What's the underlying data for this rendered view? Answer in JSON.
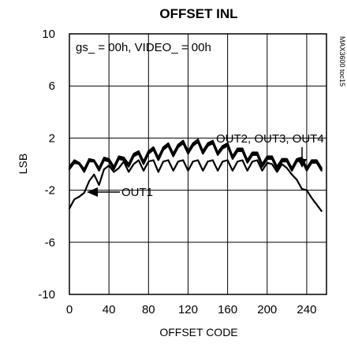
{
  "chart_data": {
    "type": "line",
    "title": "OFFSET INL",
    "xlabel": "OFFSET CODE",
    "ylabel": "LSB",
    "xlim": [
      0,
      260
    ],
    "ylim": [
      -10,
      10
    ],
    "xticks": [
      "0",
      "40",
      "80",
      "120",
      "160",
      "200",
      "240"
    ],
    "yticks": [
      "10",
      "6",
      "2",
      "-2",
      "-6",
      "-10"
    ],
    "grid": true,
    "condition_label": "gs_ = 00h, VIDEO_ = 00h",
    "part_code": "MAX3600 toc15",
    "annotations": [
      {
        "text": "OUT2, OUT3, OUT4",
        "target": "upper curves"
      },
      {
        "text": "OUT1",
        "target": "lower curve"
      }
    ],
    "series": [
      {
        "name": "OUT1",
        "x": [
          0,
          5,
          10,
          15,
          20,
          25,
          30,
          35,
          40,
          45,
          50,
          55,
          60,
          65,
          70,
          75,
          80,
          85,
          90,
          95,
          100,
          105,
          110,
          115,
          120,
          125,
          130,
          135,
          140,
          145,
          150,
          155,
          160,
          165,
          170,
          175,
          180,
          185,
          190,
          195,
          200,
          205,
          210,
          215,
          220,
          225,
          230,
          235,
          240,
          245,
          250,
          255
        ],
        "values": [
          -3.4,
          -2.7,
          -2.5,
          -2.2,
          -1.3,
          -0.8,
          -1.6,
          -0.4,
          -0.1,
          -0.6,
          -0.3,
          0.2,
          -0.6,
          0.0,
          0.3,
          -0.5,
          0.2,
          0.3,
          -0.6,
          0.2,
          0.3,
          -0.5,
          0.2,
          0.3,
          -0.5,
          0.2,
          0.3,
          -0.5,
          0.2,
          0.3,
          -0.5,
          0.2,
          0.3,
          -0.5,
          0.2,
          0.3,
          -0.5,
          0.2,
          0.3,
          -0.5,
          0.1,
          0.0,
          -0.6,
          0.0,
          -0.3,
          -0.8,
          -1.2,
          -1.9,
          -2.0,
          -2.6,
          -3.1,
          -3.6
        ]
      },
      {
        "name": "OUT2",
        "x": [
          0,
          5,
          10,
          15,
          20,
          25,
          30,
          35,
          40,
          45,
          50,
          55,
          60,
          65,
          70,
          75,
          80,
          85,
          90,
          95,
          100,
          105,
          110,
          115,
          120,
          125,
          130,
          135,
          140,
          145,
          150,
          155,
          160,
          165,
          170,
          175,
          180,
          185,
          190,
          195,
          200,
          205,
          210,
          215,
          220,
          225,
          230,
          235,
          240,
          245,
          250,
          255
        ],
        "values": [
          -0.2,
          0.3,
          0.1,
          -0.4,
          0.4,
          0.3,
          -0.3,
          0.5,
          0.4,
          -0.2,
          0.6,
          0.5,
          0.0,
          0.8,
          1.0,
          0.2,
          1.0,
          1.3,
          0.5,
          1.3,
          1.6,
          0.8,
          1.5,
          1.8,
          1.0,
          1.6,
          1.9,
          1.0,
          1.6,
          1.8,
          0.9,
          1.4,
          1.6,
          0.6,
          1.2,
          1.2,
          0.3,
          0.9,
          0.9,
          0.0,
          0.6,
          0.6,
          -0.2,
          0.4,
          0.4,
          -0.3,
          0.4,
          0.5,
          -0.3,
          0.3,
          0.3,
          -0.3
        ]
      },
      {
        "name": "OUT3",
        "x": [
          0,
          5,
          10,
          15,
          20,
          25,
          30,
          35,
          40,
          45,
          50,
          55,
          60,
          65,
          70,
          75,
          80,
          85,
          90,
          95,
          100,
          105,
          110,
          115,
          120,
          125,
          130,
          135,
          140,
          145,
          150,
          155,
          160,
          165,
          170,
          175,
          180,
          185,
          190,
          195,
          200,
          205,
          210,
          215,
          220,
          225,
          230,
          235,
          240,
          245,
          250,
          255
        ],
        "values": [
          -0.4,
          0.1,
          0.0,
          -0.6,
          0.2,
          0.2,
          -0.5,
          0.3,
          0.2,
          -0.4,
          0.4,
          0.3,
          -0.2,
          0.6,
          0.8,
          0.0,
          0.8,
          1.1,
          0.3,
          1.1,
          1.4,
          0.6,
          1.3,
          1.6,
          0.8,
          1.4,
          1.7,
          0.8,
          1.4,
          1.6,
          0.7,
          1.2,
          1.4,
          0.4,
          1.0,
          1.0,
          0.1,
          0.7,
          0.7,
          -0.2,
          0.4,
          0.4,
          -0.4,
          0.2,
          0.2,
          -0.5,
          0.2,
          0.3,
          -0.5,
          0.1,
          0.1,
          -0.5
        ]
      },
      {
        "name": "OUT4",
        "x": [
          0,
          5,
          10,
          15,
          20,
          25,
          30,
          35,
          40,
          45,
          50,
          55,
          60,
          65,
          70,
          75,
          80,
          85,
          90,
          95,
          100,
          105,
          110,
          115,
          120,
          125,
          130,
          135,
          140,
          145,
          150,
          155,
          160,
          165,
          170,
          175,
          180,
          185,
          190,
          195,
          200,
          205,
          210,
          215,
          220,
          225,
          230,
          235,
          240,
          245,
          250,
          255
        ],
        "values": [
          -0.3,
          0.2,
          0.0,
          -0.5,
          0.3,
          0.2,
          -0.4,
          0.4,
          0.3,
          -0.3,
          0.5,
          0.4,
          -0.1,
          0.7,
          0.9,
          0.1,
          0.9,
          1.2,
          0.4,
          1.2,
          1.5,
          0.7,
          1.4,
          1.7,
          0.9,
          1.5,
          1.8,
          0.9,
          1.5,
          1.7,
          0.8,
          1.3,
          1.5,
          0.5,
          1.1,
          1.1,
          0.2,
          0.8,
          0.8,
          -0.1,
          0.5,
          0.5,
          -0.3,
          0.3,
          0.3,
          -0.4,
          0.3,
          0.4,
          -0.4,
          0.2,
          0.2,
          -0.4
        ]
      }
    ]
  }
}
